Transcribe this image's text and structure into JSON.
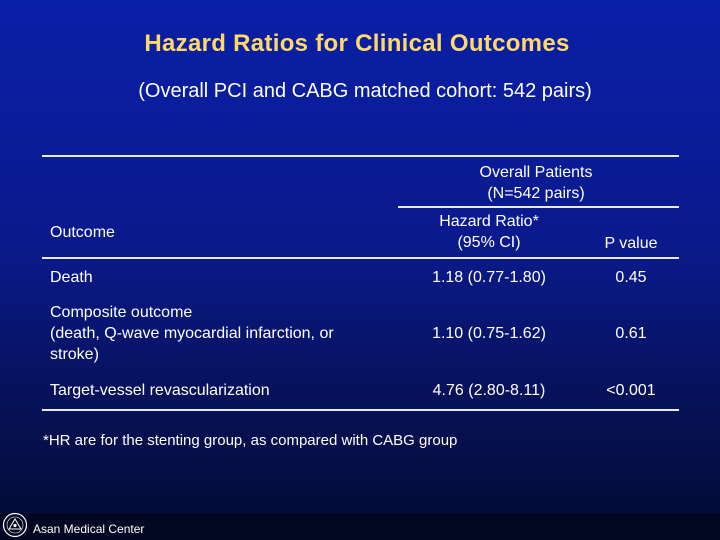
{
  "slide": {
    "title": "Hazard Ratios for Clinical Outcomes",
    "subtitle": "(Overall PCI and CABG matched cohort: 542 pairs)"
  },
  "table": {
    "group_header_line1": "Overall Patients",
    "group_header_line2": "(N=542 pairs)",
    "col_outcome": "Outcome",
    "col_hr_line1": "Hazard Ratio*",
    "col_hr_line2": "(95% CI)",
    "col_p": "P value",
    "rows": [
      {
        "outcome_line1": "Death",
        "hr": "1.18 (0.77-1.80)",
        "p": "0.45"
      },
      {
        "outcome_line1": "Composite outcome",
        "outcome_line2": "(death, Q-wave myocardial infarction, or",
        "outcome_line3": "stroke)",
        "hr": "1.10 (0.75-1.62)",
        "p": "0.61"
      },
      {
        "outcome_line1": "Target-vessel revascularization",
        "hr": "4.76 (2.80-8.11)",
        "p": "<0.001"
      }
    ]
  },
  "footnote": "*HR are for the stenting group, as compared with CABG group",
  "footer": {
    "org": "Asan Medical Center"
  }
}
